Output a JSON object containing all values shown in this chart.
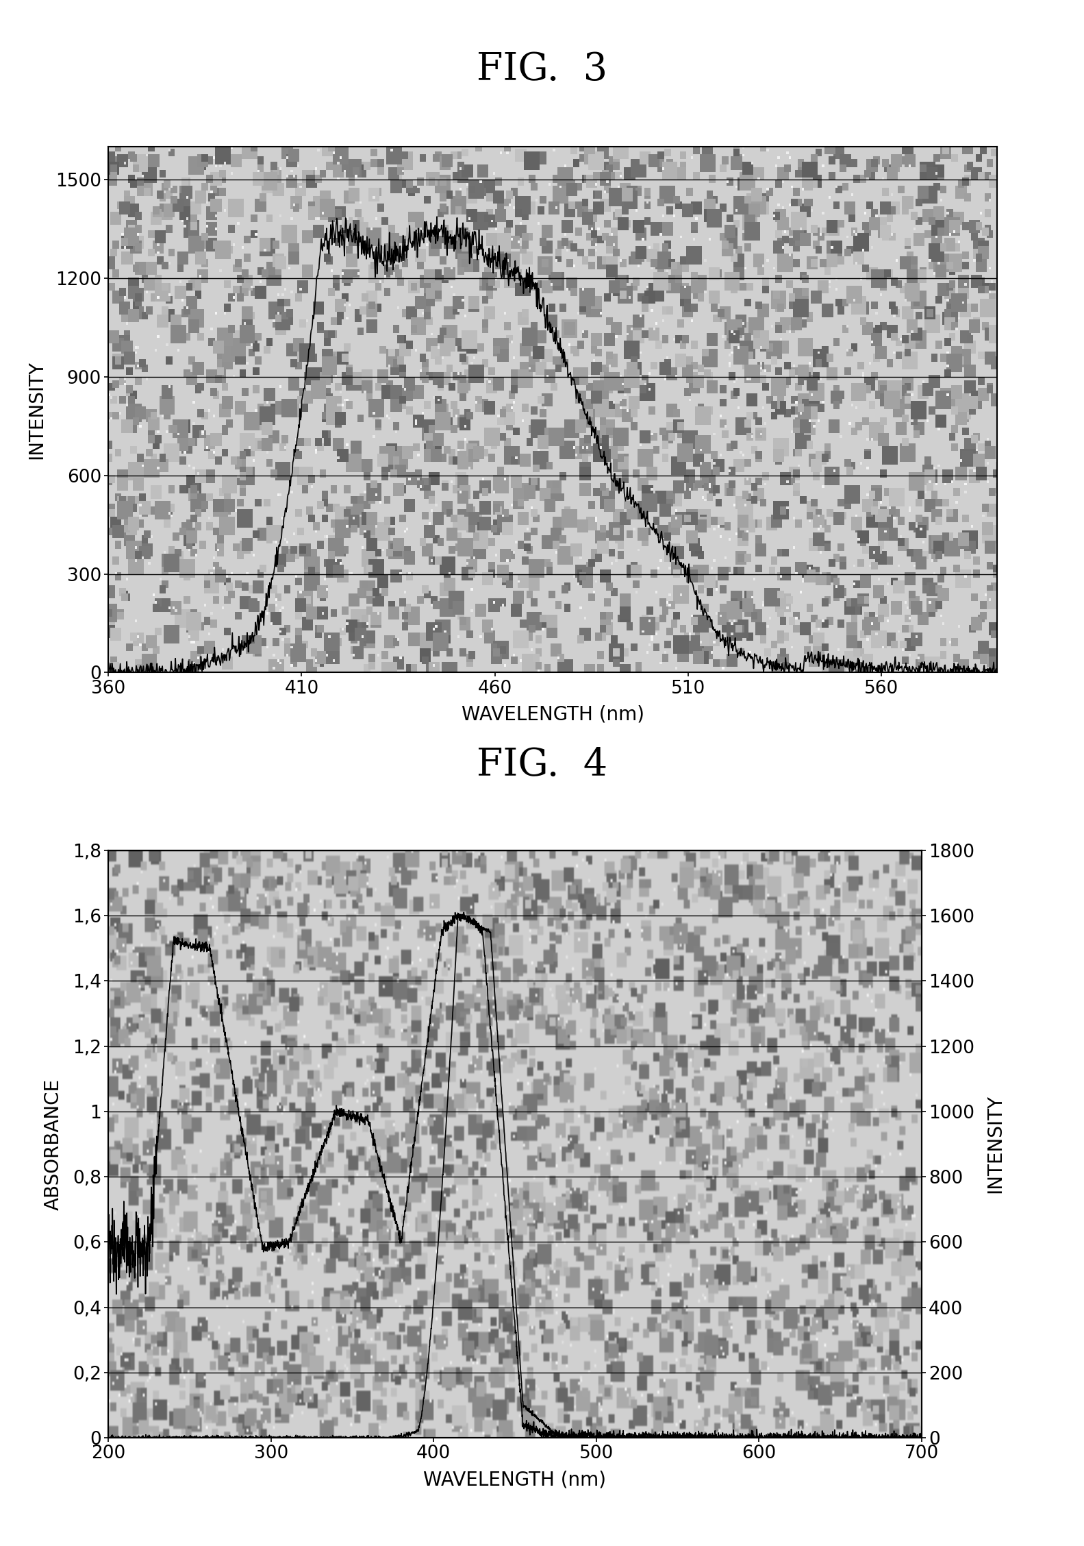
{
  "fig3": {
    "title": "FIG.  3",
    "xlabel": "WAVELENGTH (nm)",
    "ylabel": "INTENSITY",
    "xlim": [
      360,
      590
    ],
    "ylim": [
      0,
      1600
    ],
    "xticks": [
      360,
      410,
      460,
      510,
      560
    ],
    "yticks": [
      0,
      300,
      600,
      900,
      1200,
      1500
    ]
  },
  "fig4": {
    "title": "FIG.  4",
    "xlabel": "WAVELENGTH (nm)",
    "ylabel_left": "ABSORBANCE",
    "ylabel_right": "INTENSITY",
    "xlim": [
      200,
      700
    ],
    "ylim_left": [
      0,
      1.8
    ],
    "ylim_right": [
      0,
      1800
    ],
    "xticks": [
      200,
      300,
      400,
      500,
      600,
      700
    ],
    "yticks_left": [
      0,
      0.2,
      0.4,
      0.6,
      0.8,
      1.0,
      1.2,
      1.4,
      1.6,
      1.8
    ],
    "yticks_right": [
      0,
      200,
      400,
      600,
      800,
      1000,
      1200,
      1400,
      1600,
      1800
    ],
    "ytick_labels_left": [
      "0",
      "0,2",
      "0,4",
      "0,6",
      "0,8",
      "1",
      "1,2",
      "1,4",
      "1,6",
      "1,8"
    ],
    "ytick_labels_right": [
      "0",
      "200",
      "400",
      "600",
      "800",
      "1000",
      "1200",
      "1400",
      "1600",
      "1800"
    ]
  },
  "bg_color": "#cccccc",
  "line_color": "#000000",
  "grid_color": "#000000",
  "title_fontsize": 40,
  "axis_label_fontsize": 20,
  "tick_fontsize": 19
}
